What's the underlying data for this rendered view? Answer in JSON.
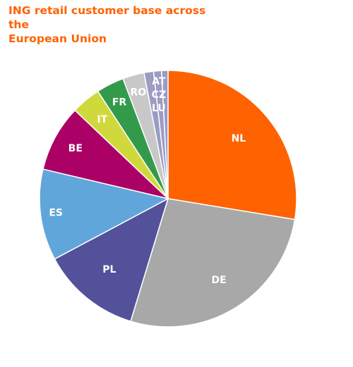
{
  "chart_data": {
    "type": "pie",
    "title_lines": [
      "ING retail customer base across the",
      "European Union"
    ],
    "categories": [
      "NL",
      "DE",
      "PL",
      "ES",
      "BE",
      "IT",
      "FR",
      "RO",
      "AT",
      "CZ",
      "LU"
    ],
    "values": [
      27.6,
      27.1,
      12.5,
      11.5,
      8.4,
      3.7,
      3.5,
      2.7,
      1.2,
      1.0,
      0.8
    ],
    "colors": [
      "#ff6200",
      "#a8a8a8",
      "#525199",
      "#60a6da",
      "#ab0066",
      "#d0d93c",
      "#349a4b",
      "#c8c8c8",
      "#9b9bc4",
      "#9b9bc4",
      "#9b9bc4"
    ],
    "stacked_label": "AT\nCZ\nLU",
    "start": "12 o'clock",
    "direction": "clockwise"
  }
}
